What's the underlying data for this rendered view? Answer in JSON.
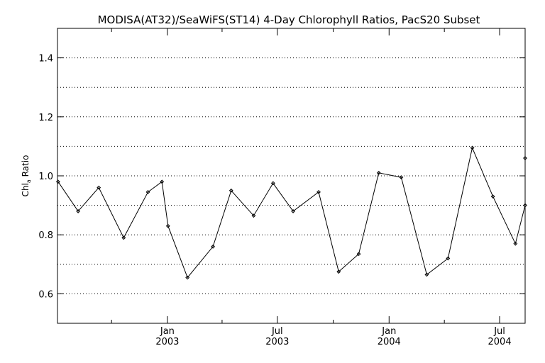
{
  "chart_data": {
    "type": "line",
    "title": "MODISA(AT32)/SeaWiFS(ST14) 4-Day Chlorophyll Ratios, PacS20 Subset",
    "ylabel_main": "Chl",
    "ylabel_sub": "a",
    "ylabel_rest": " Ratio",
    "ylim": [
      0.5,
      1.5
    ],
    "y_ticks": [
      0.6,
      0.8,
      1.0,
      1.2,
      1.4
    ],
    "y_tick_labels": [
      "0.6",
      "0.8",
      "1.0",
      "1.2",
      "1.4"
    ],
    "y_gridlines": [
      0.6,
      0.7,
      0.8,
      0.9,
      1.0,
      1.1,
      1.2,
      1.3,
      1.4
    ],
    "grid": true,
    "xlim": [
      "2002-07-04",
      "2004-08-12"
    ],
    "x_major_ticks": [
      {
        "date": "2003-01-01",
        "month": "Jan",
        "year": "2003"
      },
      {
        "date": "2003-07-01",
        "month": "Jul",
        "year": "2003"
      },
      {
        "date": "2004-01-01",
        "month": "Jan",
        "year": "2004"
      },
      {
        "date": "2004-07-01",
        "month": "Jul",
        "year": "2004"
      }
    ],
    "x_minor_ticks": [
      "2002-10-01",
      "2003-04-01",
      "2003-10-01",
      "2004-04-01"
    ],
    "series": [
      {
        "color": "#000000",
        "marker": "diamond",
        "points": [
          {
            "x": "2002-07-05",
            "y": 0.98
          },
          {
            "x": "2002-08-07",
            "y": 0.88
          },
          {
            "x": "2002-09-10",
            "y": 0.96
          },
          {
            "x": "2002-10-21",
            "y": 0.79
          },
          {
            "x": "2002-11-30",
            "y": 0.945
          },
          {
            "x": "2002-12-23",
            "y": 0.98
          },
          {
            "x": "2003-01-02",
            "y": 0.83
          },
          {
            "x": "2003-02-03",
            "y": 0.655
          },
          {
            "x": "2003-03-17",
            "y": 0.76
          },
          {
            "x": "2003-04-16",
            "y": 0.95
          },
          {
            "x": "2003-05-23",
            "y": 0.865
          },
          {
            "x": "2003-06-24",
            "y": 0.975
          },
          {
            "x": "2003-07-27",
            "y": 0.88
          },
          {
            "x": "2003-09-07",
            "y": 0.945
          },
          {
            "x": "2003-10-10",
            "y": 0.675
          },
          {
            "x": "2003-11-12",
            "y": 0.735
          },
          {
            "x": "2003-12-15",
            "y": 1.01
          },
          {
            "x": "2004-01-21",
            "y": 0.995
          },
          {
            "x": "2004-03-03",
            "y": 0.665
          },
          {
            "x": "2004-04-07",
            "y": 0.72
          },
          {
            "x": "2004-05-17",
            "y": 1.095
          },
          {
            "x": "2004-06-20",
            "y": 0.93
          },
          {
            "x": "2004-07-27",
            "y": 0.77
          },
          {
            "x": "2004-08-14",
            "y": 0.9
          },
          {
            "x": "2004-08-27",
            "y": 1.06
          }
        ]
      }
    ]
  }
}
